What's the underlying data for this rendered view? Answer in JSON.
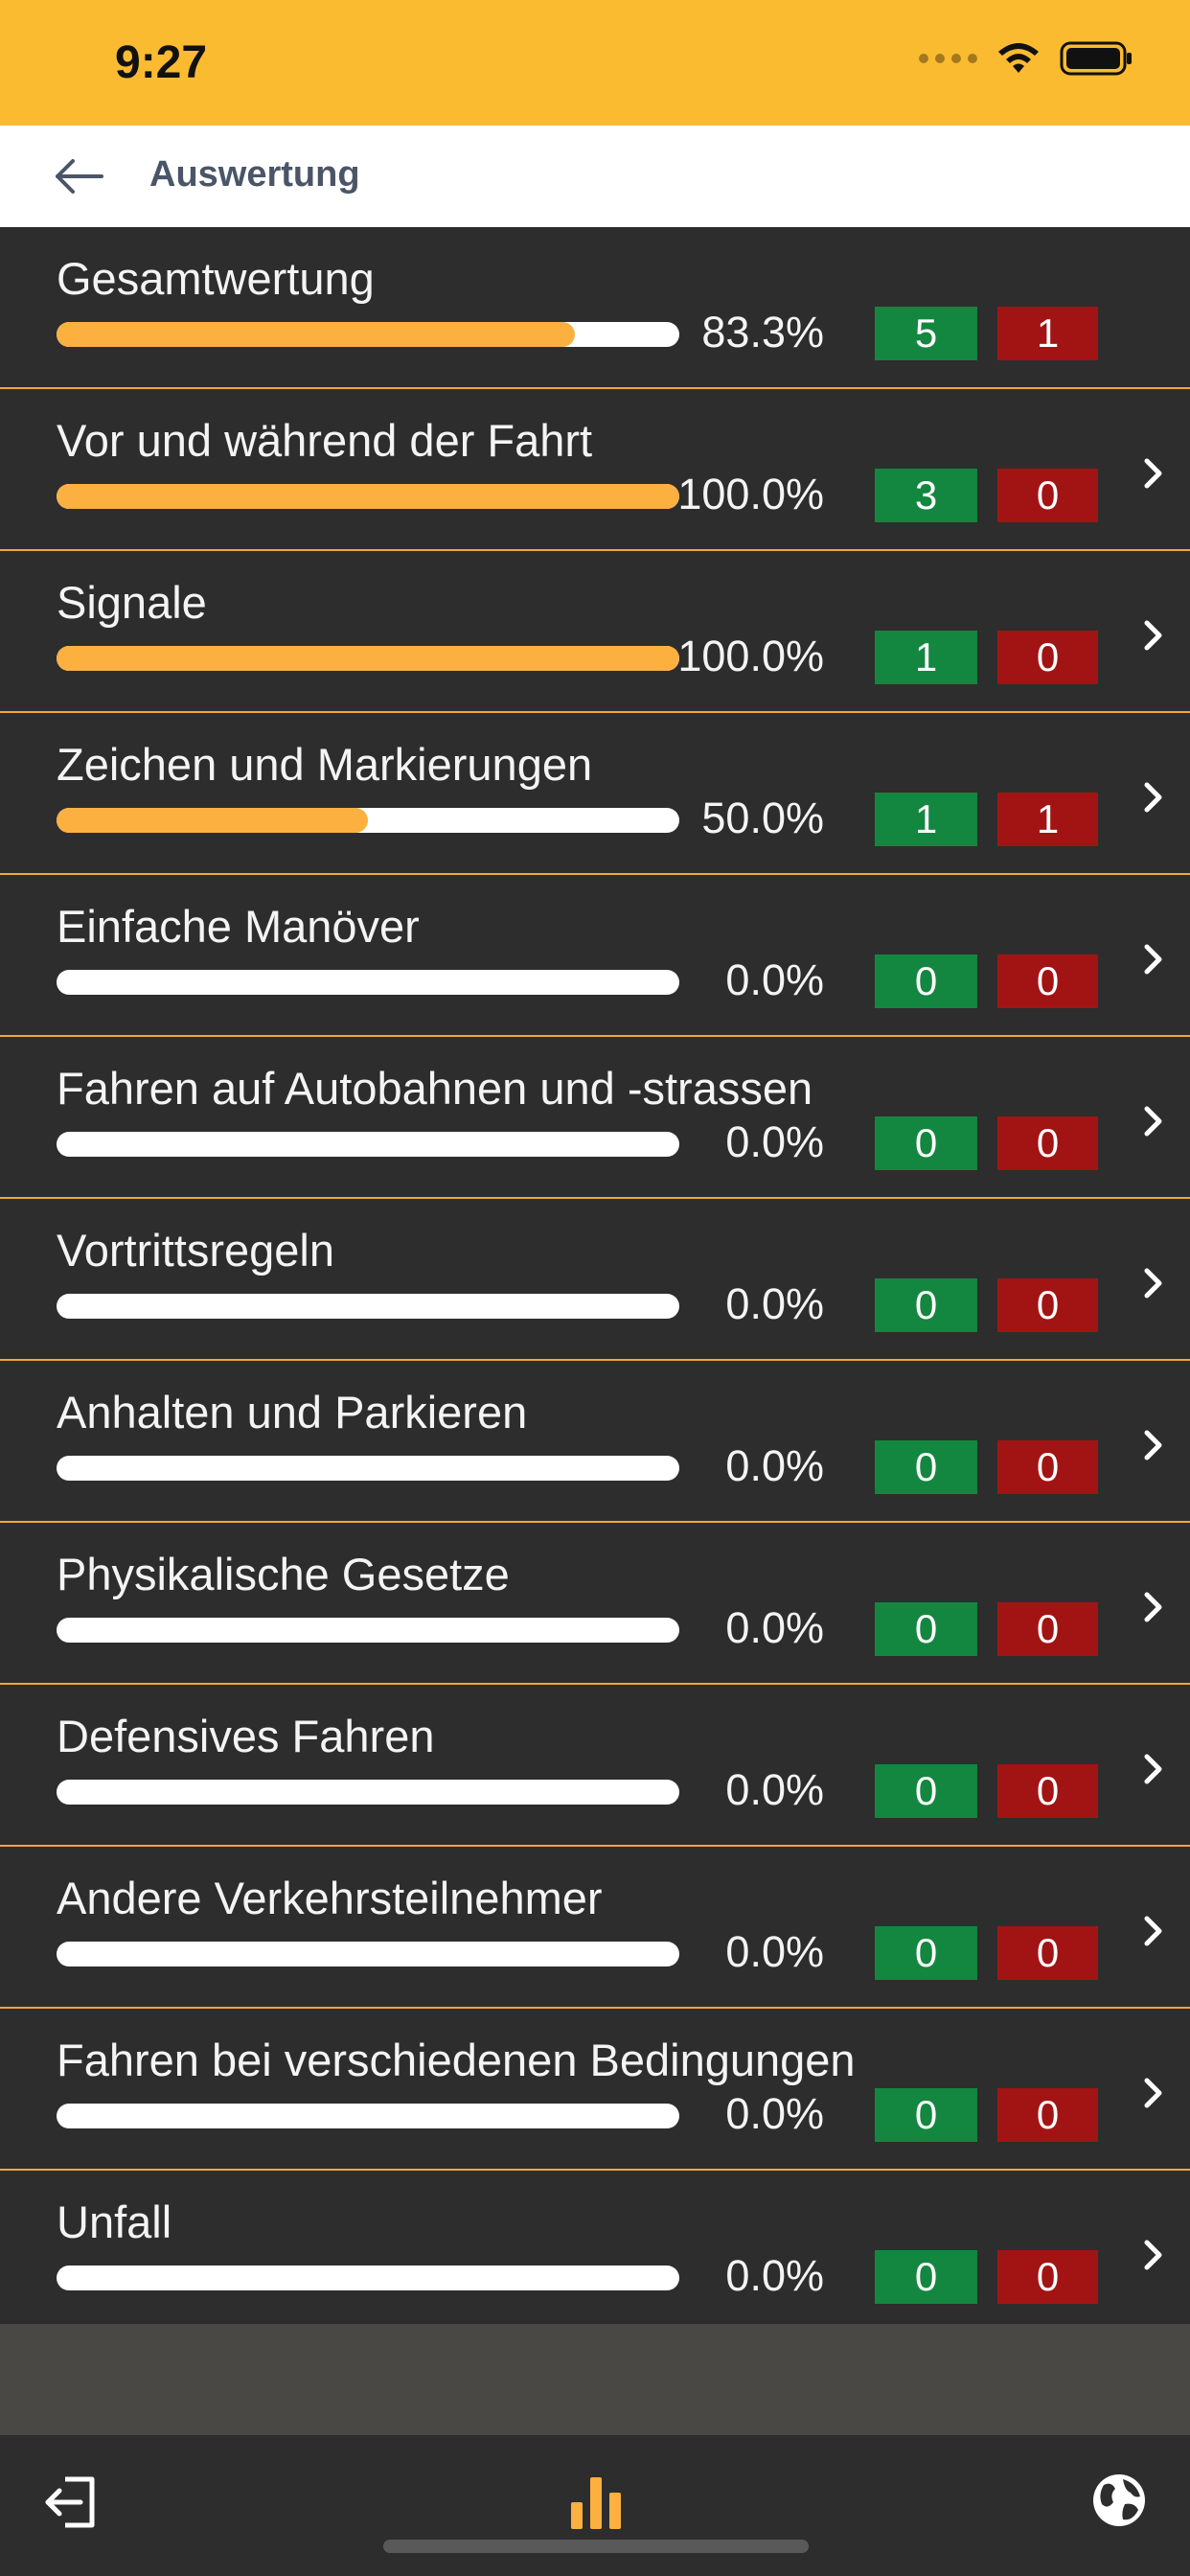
{
  "status_bar": {
    "time": "9:27"
  },
  "header": {
    "title": "Auswertung"
  },
  "rows": [
    {
      "label": "Gesamtwertung",
      "percent_text": "83.3%",
      "progress": 0.833,
      "correct": "5",
      "wrong": "1",
      "has_chevron": false
    },
    {
      "label": "Vor und während der Fahrt",
      "percent_text": "100.0%",
      "progress": 1.0,
      "correct": "3",
      "wrong": "0",
      "has_chevron": true
    },
    {
      "label": "Signale",
      "percent_text": "100.0%",
      "progress": 1.0,
      "correct": "1",
      "wrong": "0",
      "has_chevron": true
    },
    {
      "label": "Zeichen und Markierungen",
      "percent_text": "50.0%",
      "progress": 0.5,
      "correct": "1",
      "wrong": "1",
      "has_chevron": true
    },
    {
      "label": "Einfache Manöver",
      "percent_text": "0.0%",
      "progress": 0.0,
      "correct": "0",
      "wrong": "0",
      "has_chevron": true
    },
    {
      "label": "Fahren auf Autobahnen und -strassen",
      "percent_text": "0.0%",
      "progress": 0.0,
      "correct": "0",
      "wrong": "0",
      "has_chevron": true
    },
    {
      "label": "Vortrittsregeln",
      "percent_text": "0.0%",
      "progress": 0.0,
      "correct": "0",
      "wrong": "0",
      "has_chevron": true
    },
    {
      "label": "Anhalten und Parkieren",
      "percent_text": "0.0%",
      "progress": 0.0,
      "correct": "0",
      "wrong": "0",
      "has_chevron": true
    },
    {
      "label": "Physikalische Gesetze",
      "percent_text": "0.0%",
      "progress": 0.0,
      "correct": "0",
      "wrong": "0",
      "has_chevron": true
    },
    {
      "label": "Defensives Fahren",
      "percent_text": "0.0%",
      "progress": 0.0,
      "correct": "0",
      "wrong": "0",
      "has_chevron": true
    },
    {
      "label": "Andere Verkehrsteilnehmer",
      "percent_text": "0.0%",
      "progress": 0.0,
      "correct": "0",
      "wrong": "0",
      "has_chevron": true
    },
    {
      "label": "Fahren bei verschiedenen Bedingungen",
      "percent_text": "0.0%",
      "progress": 0.0,
      "correct": "0",
      "wrong": "0",
      "has_chevron": true
    },
    {
      "label": "Unfall",
      "percent_text": "0.0%",
      "progress": 0.0,
      "correct": "0",
      "wrong": "0",
      "has_chevron": true
    }
  ],
  "colors": {
    "accent": "#fbbb31",
    "bar_fill": "#fcb040",
    "correct": "#13873f",
    "wrong": "#a21414",
    "background": "#2d2d2d"
  },
  "tab_bar": {
    "items": [
      {
        "icon": "logout-icon"
      },
      {
        "icon": "bar-chart-icon",
        "active": true
      },
      {
        "icon": "globe-icon"
      }
    ]
  }
}
